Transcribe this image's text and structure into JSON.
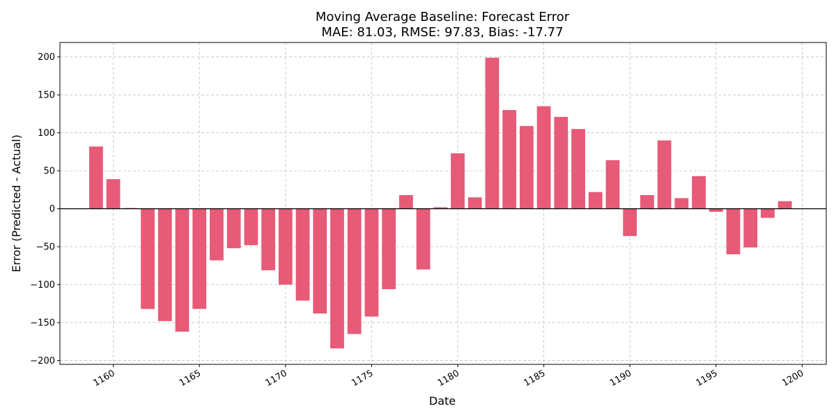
{
  "chart_data": {
    "type": "bar",
    "title_line1": "Moving Average Baseline: Forecast Error",
    "title_line2": "MAE: 81.03, RMSE: 97.83, Bias: -17.77",
    "xlabel": "Date",
    "ylabel": "Error (Predicted - Actual)",
    "xlim": [
      1156.9,
      1201.4
    ],
    "ylim": [
      -205,
      219
    ],
    "xticks": [
      1160,
      1165,
      1170,
      1175,
      1180,
      1185,
      1190,
      1195,
      1200
    ],
    "yticks": [
      -200,
      -150,
      -100,
      -50,
      0,
      50,
      100,
      150,
      200
    ],
    "grid": true,
    "bar_color": "#e75a78",
    "zero_line_color": "#000000",
    "x": [
      1159,
      1160,
      1161,
      1162,
      1163,
      1164,
      1165,
      1166,
      1167,
      1168,
      1169,
      1170,
      1171,
      1172,
      1173,
      1174,
      1175,
      1176,
      1177,
      1178,
      1179,
      1180,
      1181,
      1182,
      1183,
      1184,
      1185,
      1186,
      1187,
      1188,
      1189,
      1190,
      1191,
      1192,
      1193,
      1194,
      1195,
      1196,
      1197,
      1198,
      1199
    ],
    "values": [
      82,
      39,
      1,
      -132,
      -148,
      -162,
      -132,
      -68,
      -52,
      -48,
      -81,
      -100,
      -121,
      -138,
      -184,
      -165,
      -142,
      -106,
      18,
      -80,
      2,
      73,
      15,
      199,
      130,
      109,
      135,
      121,
      105,
      22,
      64,
      -36,
      18,
      90,
      14,
      43,
      -4,
      -60,
      -51,
      -12,
      10
    ]
  }
}
